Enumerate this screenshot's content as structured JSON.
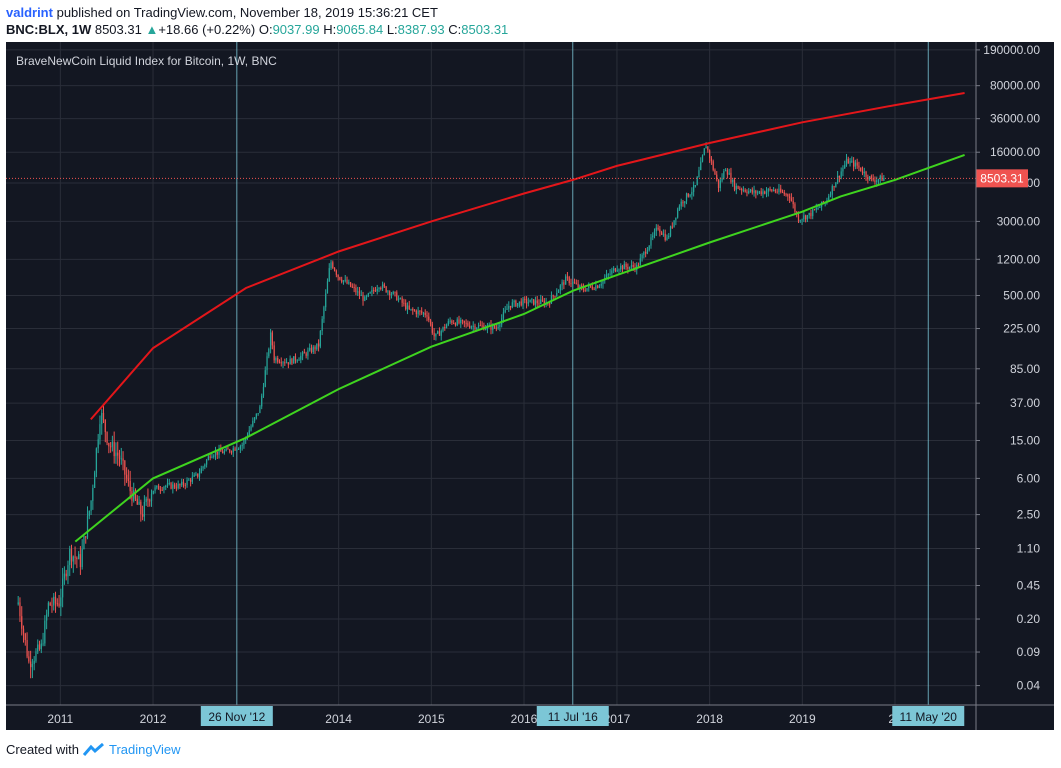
{
  "header": {
    "author": "valdrint",
    "published_text": "published on TradingView.com, November 18, 2019 15:36:21 CET",
    "symbol": "BNC:BLX, 1W",
    "last": "8503.31",
    "change": "+18.66 (+0.22%)",
    "o_label": "O:",
    "o_value": "9037.99",
    "h_label": "H:",
    "h_value": "9065.84",
    "l_label": "L:",
    "l_value": "8387.93",
    "c_label": "C:",
    "c_value": "8503.31"
  },
  "footer": {
    "created_text": "Created with",
    "brand": "TradingView"
  },
  "colors": {
    "background": "#131722",
    "grid": "#2a2e39",
    "up": "#26a69a",
    "down": "#ef5350",
    "upper_curve": "#e3161a",
    "lower_curve": "#3fd41f",
    "marker": "#7cc6d6",
    "price_line": "#ef5350"
  },
  "chart_data": {
    "type": "line",
    "title": "BraveNewCoin Liquid Index for Bitcoin, 1W, BNC",
    "xlabel": "",
    "ylabel": "",
    "y_scale": "log",
    "x_tick_labels": [
      "2011",
      "2012",
      "2014",
      "2015",
      "2016",
      "2017",
      "2018",
      "2019",
      "20"
    ],
    "y_tick_labels": [
      "190000.00",
      "80000.00",
      "36000.00",
      "16000.00",
      "7600.00",
      "3000.00",
      "1200.00",
      "500.00",
      "225.00",
      "85.00",
      "37.00",
      "15.00",
      "6.00",
      "2.50",
      "1.10",
      "0.45",
      "0.20",
      "0.09",
      "0.04"
    ],
    "last_price": "8503.31",
    "date_markers": [
      "26 Nov '12",
      "11 Jul '16",
      "11 May '20"
    ],
    "series": [
      {
        "kind": "candles",
        "points": [
          [
            "2010-07-19",
            0.3
          ],
          [
            "2010-08-30",
            0.07
          ],
          [
            "2010-10-18",
            0.1
          ],
          [
            "2010-11-15",
            0.28
          ],
          [
            "2010-12-27",
            0.3
          ],
          [
            "2011-02-07",
            1.0
          ],
          [
            "2011-03-21",
            0.8
          ],
          [
            "2011-05-02",
            3.5
          ],
          [
            "2011-06-08",
            30.0
          ],
          [
            "2011-07-11",
            14.0
          ],
          [
            "2011-08-22",
            10.0
          ],
          [
            "2011-10-03",
            4.5
          ],
          [
            "2011-11-18",
            2.5
          ],
          [
            "2011-12-26",
            4.5
          ],
          [
            "2012-02-13",
            5.0
          ],
          [
            "2012-04-16",
            5.0
          ],
          [
            "2012-06-25",
            6.5
          ],
          [
            "2012-08-16",
            11.0
          ],
          [
            "2012-10-15",
            11.5
          ],
          [
            "2012-12-17",
            13.5
          ],
          [
            "2013-02-25",
            33.0
          ],
          [
            "2013-04-09",
            200.0
          ],
          [
            "2013-04-22",
            110.0
          ],
          [
            "2013-06-17",
            100.0
          ],
          [
            "2013-08-19",
            120.0
          ],
          [
            "2013-10-14",
            150.0
          ],
          [
            "2013-11-30",
            1150.0
          ],
          [
            "2013-12-30",
            800.0
          ],
          [
            "2014-02-24",
            600.0
          ],
          [
            "2014-04-14",
            450.0
          ],
          [
            "2014-06-09",
            650.0
          ],
          [
            "2014-08-11",
            500.0
          ],
          [
            "2014-10-06",
            350.0
          ],
          [
            "2014-12-15",
            320.0
          ],
          [
            "2015-01-14",
            180.0
          ],
          [
            "2015-03-16",
            270.0
          ],
          [
            "2015-06-15",
            240.0
          ],
          [
            "2015-09-14",
            230.0
          ],
          [
            "2015-11-04",
            400.0
          ],
          [
            "2016-01-04",
            430.0
          ],
          [
            "2016-04-04",
            420.0
          ],
          [
            "2016-06-16",
            750.0
          ],
          [
            "2016-08-15",
            580.0
          ],
          [
            "2016-10-17",
            640.0
          ],
          [
            "2017-01-02",
            1000.0
          ],
          [
            "2017-03-20",
            1000.0
          ],
          [
            "2017-06-12",
            2600.0
          ],
          [
            "2017-07-17",
            1950.0
          ],
          [
            "2017-09-04",
            4500.0
          ],
          [
            "2017-11-06",
            7000.0
          ],
          [
            "2017-12-17",
            19500.0
          ],
          [
            "2018-02-05",
            7000.0
          ],
          [
            "2018-03-05",
            11000.0
          ],
          [
            "2018-04-09",
            7000.0
          ],
          [
            "2018-06-25",
            6000.0
          ],
          [
            "2018-09-10",
            6400.0
          ],
          [
            "2018-11-12",
            5600.0
          ],
          [
            "2018-12-15",
            3200.0
          ],
          [
            "2019-01-28",
            3500.0
          ],
          [
            "2019-04-01",
            4800.0
          ],
          [
            "2019-05-13",
            8000.0
          ],
          [
            "2019-06-26",
            13000.0
          ],
          [
            "2019-08-05",
            11500.0
          ],
          [
            "2019-09-30",
            8200.0
          ],
          [
            "2019-11-18",
            8503.31
          ]
        ]
      },
      {
        "name": "",
        "kind": "upper-curve",
        "points": [
          [
            "2011-05-01",
            25
          ],
          [
            "2012-01-01",
            140
          ],
          [
            "2013-01-01",
            600
          ],
          [
            "2014-01-01",
            1450
          ],
          [
            "2015-01-01",
            3000
          ],
          [
            "2016-01-01",
            5900
          ],
          [
            "2016-07-11",
            8200
          ],
          [
            "2017-01-01",
            11500
          ],
          [
            "2018-01-01",
            20000
          ],
          [
            "2019-01-01",
            33000
          ],
          [
            "2020-01-01",
            50000
          ],
          [
            "2020-10-01",
            67000
          ]
        ]
      },
      {
        "name": "",
        "kind": "lower-curve",
        "points": [
          [
            "2011-03-01",
            1.3
          ],
          [
            "2012-01-01",
            6.0
          ],
          [
            "2013-01-01",
            16.0
          ],
          [
            "2014-01-01",
            52.0
          ],
          [
            "2015-01-01",
            145.0
          ],
          [
            "2016-01-01",
            320.0
          ],
          [
            "2016-07-11",
            560.0
          ],
          [
            "2017-01-01",
            820.0
          ],
          [
            "2018-01-01",
            1800.0
          ],
          [
            "2019-01-01",
            3800.0
          ],
          [
            "2019-06-01",
            5500.0
          ],
          [
            "2020-01-01",
            8200.0
          ],
          [
            "2020-10-01",
            15000.0
          ]
        ]
      }
    ]
  }
}
